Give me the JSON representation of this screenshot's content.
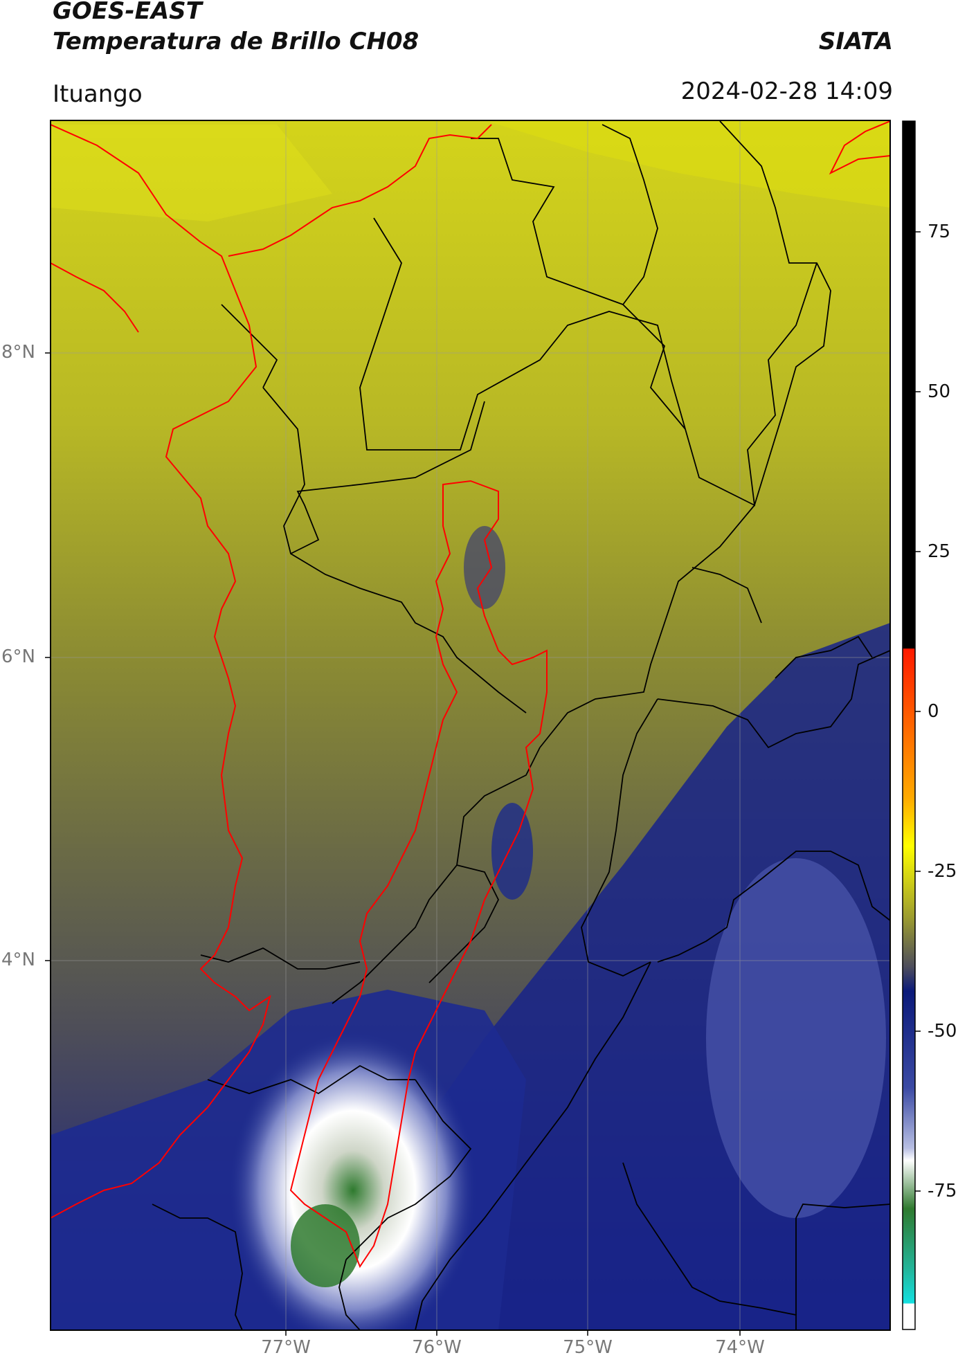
{
  "header": {
    "satellite": "GOES-EAST",
    "product": "Temperatura de Brillo CH08",
    "org": "SIATA",
    "region": "Ituango",
    "datetime": "2024-02-28 14:09"
  },
  "axes": {
    "lat_labels": [
      "8°N",
      "6°N",
      "4°N"
    ],
    "lon_labels": [
      "77°W",
      "76°W",
      "75°W",
      "74°W"
    ]
  },
  "colorbar": {
    "ticks": [
      "75",
      "50",
      "25",
      "0",
      "-25",
      "-50",
      "-75"
    ],
    "colors": {
      "black": "#000000",
      "red": "#ff1a00",
      "orange": "#ff9900",
      "yellow": "#ffff00",
      "olive": "#8a8a2c",
      "dark_gray": "#4d4d5c",
      "navy": "#0b1a7a",
      "light_blue": "#b8bfe3",
      "white": "#ffffff",
      "green": "#2f7a2f",
      "teal": "#23b59a",
      "cyan": "#14e0e0"
    }
  },
  "legend_colors": {
    "department_borders": "#000000",
    "basin_and_coast": "#ff0000"
  }
}
